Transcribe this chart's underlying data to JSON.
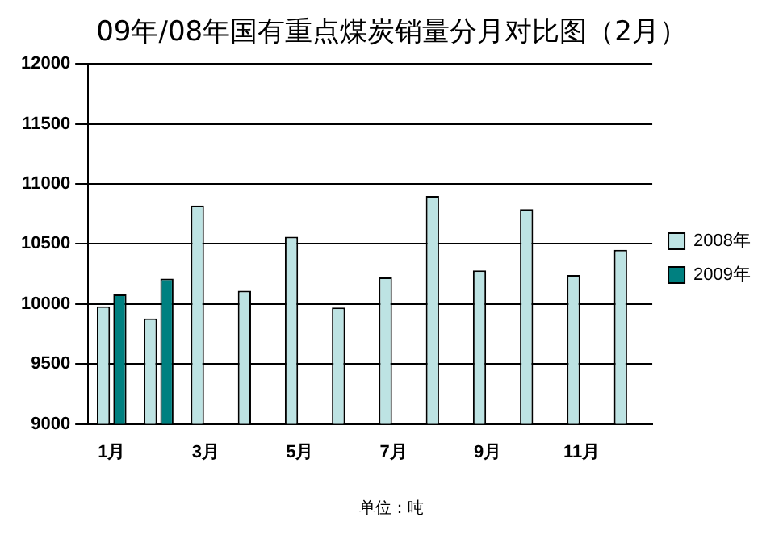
{
  "chart_data": {
    "type": "bar",
    "title": "09年/08年国有重点煤炭销量分月对比图（2月）",
    "categories": [
      "1月",
      null,
      "3月",
      null,
      "5月",
      null,
      "7月",
      null,
      "9月",
      null,
      "11月",
      null
    ],
    "series": [
      {
        "name": "2008年",
        "color": "#bde3e3",
        "values": [
          9980,
          9880,
          10820,
          10110,
          10560,
          9970,
          10220,
          10900,
          10280,
          10790,
          10240,
          10450
        ]
      },
      {
        "name": "2009年",
        "color": "#008080",
        "values": [
          10080,
          10210,
          null,
          null,
          null,
          null,
          null,
          null,
          null,
          null,
          null,
          null
        ]
      }
    ],
    "ylim": [
      9000,
      12000
    ],
    "yticks": [
      9000,
      9500,
      10000,
      10500,
      11000,
      11500,
      12000
    ],
    "grid": "y",
    "legend": "right",
    "annotations": [
      "单位：吨"
    ]
  }
}
